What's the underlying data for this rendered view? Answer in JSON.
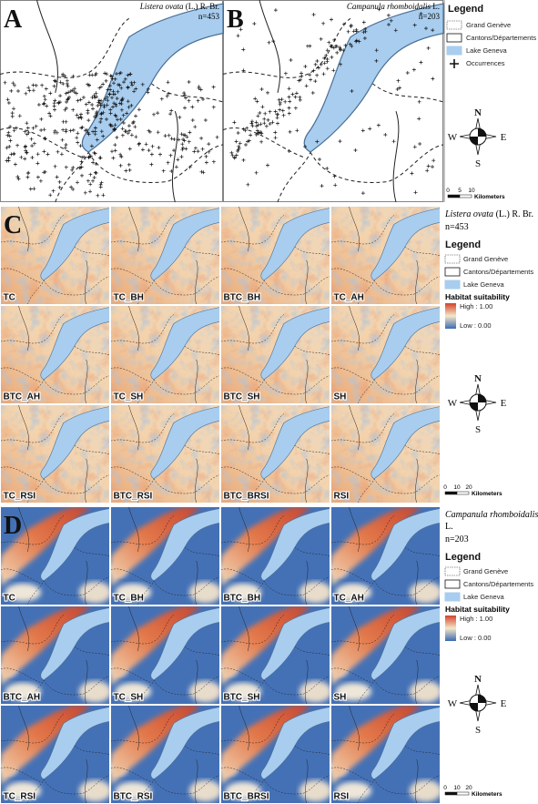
{
  "panel_a": {
    "label": "A",
    "species": "Listera ovata",
    "authority": " (L.) R. Br.",
    "count": "n=453"
  },
  "panel_b": {
    "label": "B",
    "species": "Campanula rhomboidalis",
    "authority": " L.",
    "count": "n=203"
  },
  "legend_top": {
    "title": "Legend",
    "items": [
      "Grand Genève",
      "Cantons/Départements",
      "Lake Geneva",
      "Occurrences"
    ],
    "compass": {
      "n": "N",
      "e": "E",
      "s": "S",
      "w": "W"
    },
    "scale": {
      "ticks": [
        0,
        5,
        10
      ],
      "unit": "Kilometers"
    }
  },
  "panel_c": {
    "label": "C",
    "species": "Listera ovata",
    "authority": " (L.) R. Br.",
    "count": "n=453",
    "maps": [
      "TC",
      "TC_BH",
      "BTC_BH",
      "TC_AH",
      "BTC_AH",
      "TC_SH",
      "BTC_SH",
      "SH",
      "TC_RSI",
      "BTC_RSI",
      "BTC_BRSI",
      "RSI"
    ],
    "legend": {
      "title": "Legend",
      "items": [
        "Grand Genève",
        "Cantons/Départements",
        "Lake Geneva"
      ],
      "suitability": {
        "title": "Habitat suitability",
        "high": "High : 1.00",
        "low": "Low : 0.00"
      }
    },
    "compass": {
      "n": "N",
      "e": "E",
      "s": "S",
      "w": "W"
    },
    "scale": {
      "ticks": [
        0,
        10,
        20
      ],
      "unit": "Kilometers"
    }
  },
  "panel_d": {
    "label": "D",
    "species": "Campanula rhomboidalis",
    "authority": "L.",
    "count": "n=203",
    "maps": [
      "TC",
      "TC_BH",
      "BTC_BH",
      "TC_AH",
      "BTC_AH",
      "TC_SH",
      "BTC_SH",
      "SH",
      "TC_RSI",
      "BTC_RSI",
      "BTC_BRSI",
      "RSI"
    ],
    "legend": {
      "title": "Legend",
      "items": [
        "Grand Genève",
        "Cantons/Départements",
        "Lake Geneva"
      ],
      "suitability": {
        "title": "Habitat suitability",
        "high": "High : 1.00",
        "low": "Low : 0.00"
      }
    },
    "compass": {
      "n": "N",
      "e": "E",
      "s": "S",
      "w": "W"
    },
    "scale": {
      "ticks": [
        0,
        10,
        20
      ],
      "unit": "Kilometers"
    }
  }
}
